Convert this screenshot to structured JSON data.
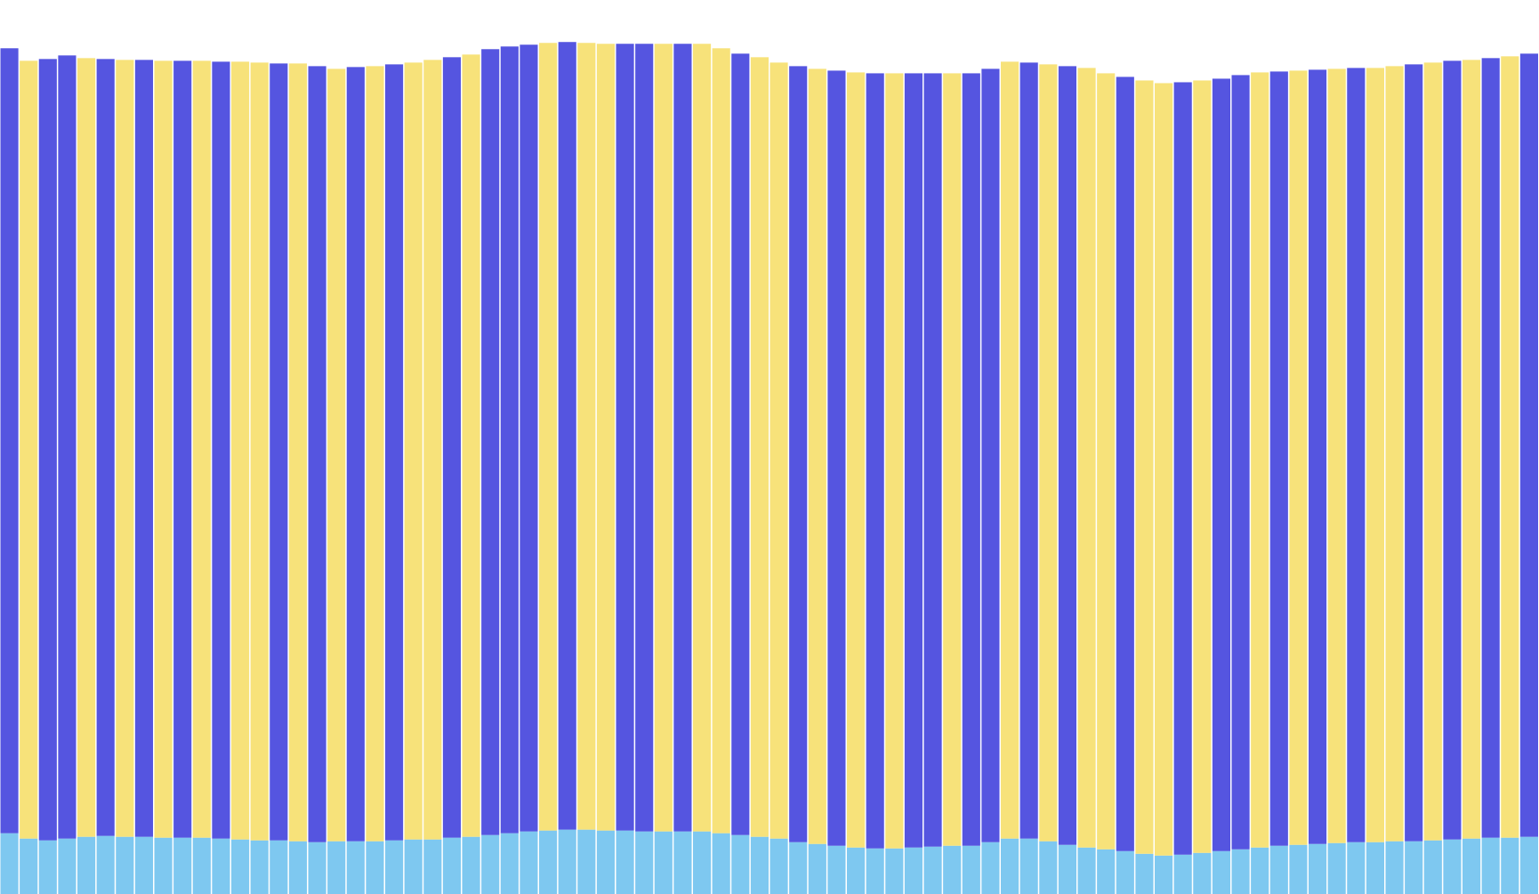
{
  "chart_data": {
    "type": "stacked-bar",
    "ylim": [
      0,
      100
    ],
    "series": [
      {
        "color": "#7ec8f0",
        "values": [
          6.8,
          6.2,
          6.0,
          6.2,
          6.4,
          6.5,
          6.4,
          6.4,
          6.3,
          6.3,
          6.3,
          6.2,
          6.1,
          6.0,
          6.0,
          5.9,
          5.8,
          5.9,
          5.9,
          5.9,
          6.0,
          6.1,
          6.1,
          6.3,
          6.4,
          6.6,
          6.8,
          7.0,
          7.1,
          7.2,
          7.2,
          7.1,
          7.1,
          7.0,
          7.0,
          7.0,
          7.0,
          6.8,
          6.6,
          6.4,
          6.2,
          5.8,
          5.6,
          5.4,
          5.2,
          5.1,
          5.1,
          5.2,
          5.3,
          5.4,
          5.4,
          5.8,
          6.2,
          6.2,
          5.9,
          5.5,
          5.2,
          5.0,
          4.8,
          4.5,
          4.3,
          4.4,
          4.6,
          4.8,
          5.0,
          5.2,
          5.4,
          5.5,
          5.6,
          5.7,
          5.8,
          5.8,
          5.9,
          5.9,
          6.0,
          6.1,
          6.2,
          6.3,
          6.3,
          6.4
        ]
      },
      {
        "color": "#5555e0",
        "values": [
          87.8,
          0,
          87.4,
          87.6,
          0,
          86.9,
          0,
          86.9,
          0,
          86.9,
          0,
          86.9,
          0,
          0,
          86.9,
          0,
          86.8,
          0,
          86.6,
          0,
          86.8,
          0,
          0,
          87.3,
          0,
          87.9,
          88.0,
          88.0,
          0,
          88.1,
          0,
          0,
          88.0,
          88.1,
          0,
          88.1,
          0,
          0,
          87.4,
          0,
          0,
          86.8,
          0,
          86.7,
          0,
          86.7,
          0,
          86.6,
          86.5,
          0,
          86.4,
          86.5,
          0,
          86.8,
          0,
          87.1,
          0,
          0,
          86.6,
          0,
          0,
          86.4,
          0,
          86.4,
          86.6,
          0,
          86.6,
          0,
          86.6,
          0,
          86.6,
          0,
          0,
          86.9,
          0,
          87.1,
          0,
          87.2,
          0,
          87.6
        ]
      },
      {
        "color": "#f7e27a",
        "values": [
          0,
          87.0,
          0,
          0,
          87.1,
          0,
          86.9,
          0,
          86.9,
          0,
          86.9,
          0,
          87.0,
          87.0,
          0,
          87.0,
          0,
          86.4,
          0,
          86.7,
          0,
          86.9,
          87.2,
          0,
          87.5,
          0,
          0,
          0,
          88.1,
          0,
          88.0,
          88.0,
          0,
          0,
          88.1,
          0,
          88.1,
          87.8,
          0,
          87.2,
          86.8,
          0,
          86.7,
          0,
          86.7,
          0,
          86.7,
          0,
          0,
          86.4,
          0,
          0,
          86.9,
          0,
          86.9,
          0,
          87.2,
          86.8,
          0,
          86.5,
          86.4,
          0,
          86.4,
          0,
          0,
          86.7,
          0,
          86.6,
          0,
          86.6,
          0,
          86.6,
          86.7,
          0,
          87.0,
          0,
          87.1,
          0,
          87.4,
          0
        ]
      }
    ]
  }
}
